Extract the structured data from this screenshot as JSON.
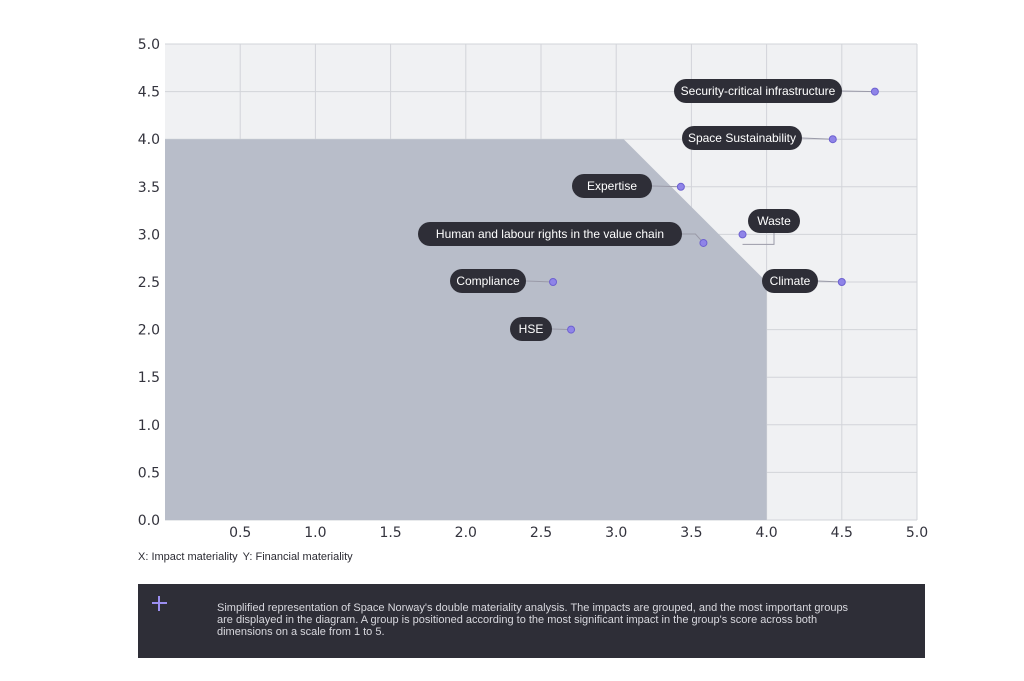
{
  "chart_data": {
    "type": "scatter",
    "title": "",
    "xlim": [
      0,
      5
    ],
    "ylim": [
      0,
      5
    ],
    "x_ticks": [
      "0.5",
      "1.0",
      "1.5",
      "2.0",
      "2.5",
      "3.0",
      "3.5",
      "4.0",
      "4.5",
      "5.0"
    ],
    "y_ticks": [
      "0.0",
      "0.5",
      "1.0",
      "1.5",
      "2.0",
      "2.5",
      "3.0",
      "3.5",
      "4.0",
      "4.5",
      "5.0"
    ],
    "grid": true,
    "shaded_region": [
      [
        0,
        0
      ],
      [
        0,
        4.0
      ],
      [
        3.05,
        4.0
      ],
      [
        4.0,
        2.5
      ],
      [
        4.0,
        0
      ]
    ],
    "points": [
      {
        "label": "Security-critical infrastructure",
        "x": 4.72,
        "y": 4.5
      },
      {
        "label": "Space Sustainability",
        "x": 4.44,
        "y": 4.0
      },
      {
        "label": "Expertise",
        "x": 3.43,
        "y": 3.5
      },
      {
        "label": "Waste",
        "x": 3.84,
        "y": 3.0
      },
      {
        "label": "Human and labour rights in the value chain",
        "x": 3.58,
        "y": 2.91
      },
      {
        "label": "Compliance",
        "x": 2.58,
        "y": 2.5
      },
      {
        "label": "Climate",
        "x": 4.5,
        "y": 2.5
      },
      {
        "label": "HSE",
        "x": 2.7,
        "y": 2.0
      }
    ],
    "axis_note": {
      "x": "X: Impact materiality",
      "y": "Y: Financial materiality"
    },
    "colors": {
      "plot_bg": "#f0f1f3",
      "grid": "#d2d4d9",
      "shade": "#b8bdc9",
      "point": "#8f84e8",
      "point_stroke": "#6d61d0",
      "pill": "#2e2e37"
    }
  },
  "info_box": {
    "icon": "plus-icon",
    "text": "Simplified representation of Space Norway's double materiality analysis. The impacts are grouped, and the most important groups are displayed in the diagram. A group is positioned according to the most significant impact in the group's score across both dimensions on a scale from 1 to 5."
  }
}
